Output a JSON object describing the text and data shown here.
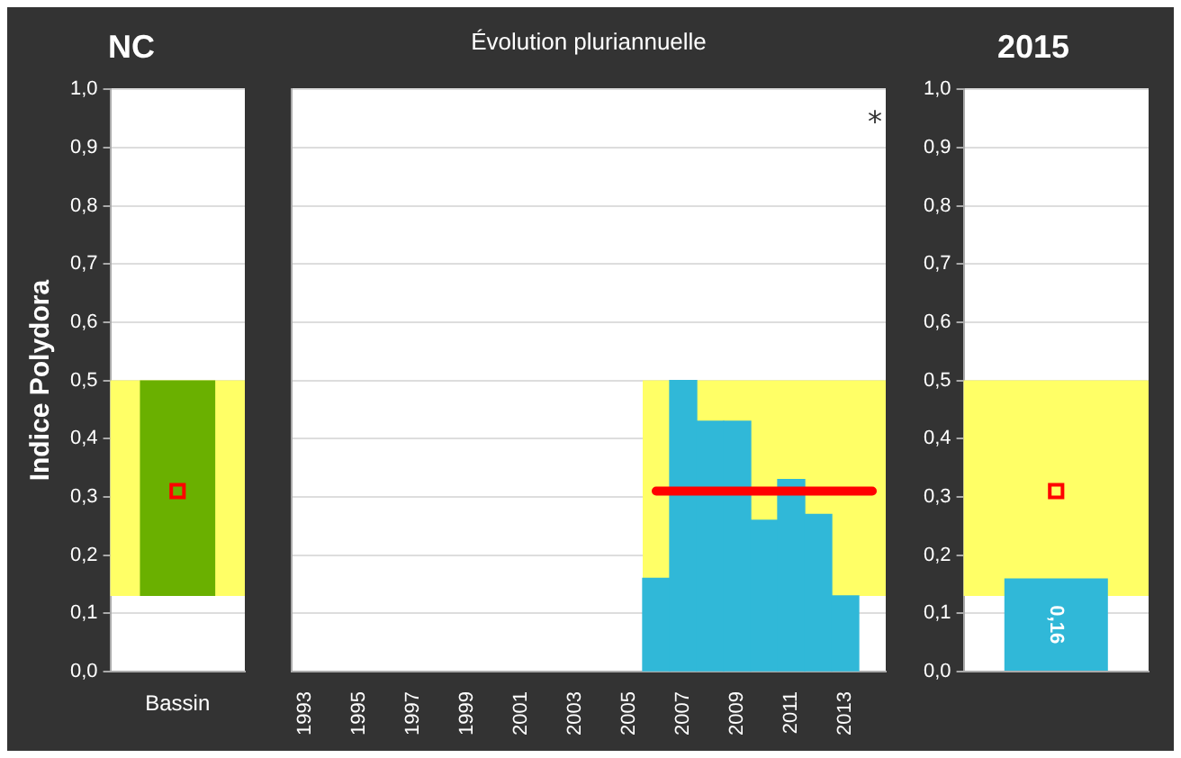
{
  "chart_data": [
    {
      "type": "bar",
      "title": "NC",
      "ylabel": "Indice Polydora",
      "categories": [
        "Bassin"
      ],
      "series": [
        {
          "color": "#6ab000",
          "values": [
            0.37
          ],
          "base": [
            0.13
          ]
        },
        {
          "type": "scatter",
          "color": "#ff0000",
          "values": [
            0.31
          ],
          "x": [
            "Bassin"
          ],
          "marker": "square"
        }
      ],
      "bands": [
        {
          "axis": "y",
          "from": 0.13,
          "to": 0.5,
          "color": "#ffff66"
        }
      ],
      "ylim": [
        0,
        1
      ],
      "yticks": [
        {
          "value": 0,
          "label": "0,0"
        },
        {
          "value": 0.1,
          "label": "0,1"
        },
        {
          "value": 0.2,
          "label": "0,2"
        },
        {
          "value": 0.3,
          "label": "0,3"
        },
        {
          "value": 0.4,
          "label": "0,4"
        },
        {
          "value": 0.5,
          "label": "0,5"
        },
        {
          "value": 0.6,
          "label": "0,6"
        },
        {
          "value": 0.7,
          "label": "0,7"
        },
        {
          "value": 0.8,
          "label": "0,8"
        },
        {
          "value": 0.9,
          "label": "0,9"
        },
        {
          "value": 1,
          "label": "1,0"
        }
      ],
      "grid": "y",
      "legend": false
    },
    {
      "type": "bar",
      "title": "Évolution pluriannuelle",
      "categories": [
        "1993",
        null,
        "1995",
        null,
        "1997",
        null,
        "1999",
        null,
        "2001",
        null,
        "2003",
        null,
        "2005",
        null,
        "2007",
        null,
        "2009",
        null,
        "2011",
        null,
        "2013",
        null
      ],
      "series": [
        {
          "color": "#30b8d8",
          "values": [
            null,
            null,
            null,
            null,
            null,
            null,
            null,
            null,
            null,
            null,
            null,
            null,
            null,
            0.16,
            0.5,
            0.43,
            0.43,
            0.26,
            0.33,
            0.27,
            0.13,
            null
          ]
        },
        {
          "type": "line",
          "color": "#ff0000",
          "values": [
            null,
            null,
            null,
            null,
            null,
            null,
            null,
            null,
            null,
            null,
            null,
            null,
            null,
            0.31,
            0.31,
            0.31,
            0.31,
            0.31,
            0.31,
            0.31,
            0.31,
            0.31
          ]
        }
      ],
      "bands": [
        {
          "axis": "y",
          "from": 0.13,
          "to": 0.5,
          "color": "#ffff66"
        }
      ],
      "annotations": [
        "⁎"
      ],
      "ylim": [
        0,
        1
      ],
      "yticks": [
        0,
        0.1,
        0.2,
        0.3,
        0.4,
        0.5,
        0.6,
        0.7,
        0.8,
        0.9,
        1
      ],
      "tick_labels": "x",
      "grid": "y",
      "legend": false
    },
    {
      "type": "bar",
      "title": "2015",
      "categories": [
        null
      ],
      "series": [
        {
          "color": "#30b8d8",
          "values": [
            0.16
          ],
          "value_labels": [
            "0,16"
          ]
        },
        {
          "type": "scatter",
          "color": "#ff0000",
          "values": [
            0.31
          ],
          "x": [
            null
          ],
          "marker": "square"
        }
      ],
      "bands": [
        {
          "axis": "y",
          "from": 0.13,
          "to": 0.5,
          "color": "#ffff66"
        }
      ],
      "ylim": [
        0,
        1
      ],
      "yticks": [
        {
          "value": 0,
          "label": "0,0"
        },
        {
          "value": 0.1,
          "label": "0,1"
        },
        {
          "value": 0.2,
          "label": "0,2"
        },
        {
          "value": 0.3,
          "label": "0,3"
        },
        {
          "value": 0.4,
          "label": "0,4"
        },
        {
          "value": 0.5,
          "label": "0,5"
        },
        {
          "value": 0.6,
          "label": "0,6"
        },
        {
          "value": 0.7,
          "label": "0,7"
        },
        {
          "value": 0.8,
          "label": "0,8"
        },
        {
          "value": 0.9,
          "label": "0,9"
        },
        {
          "value": 1,
          "label": "1,0"
        }
      ],
      "tick_labels": "y",
      "grid": "y",
      "legend": false
    }
  ]
}
